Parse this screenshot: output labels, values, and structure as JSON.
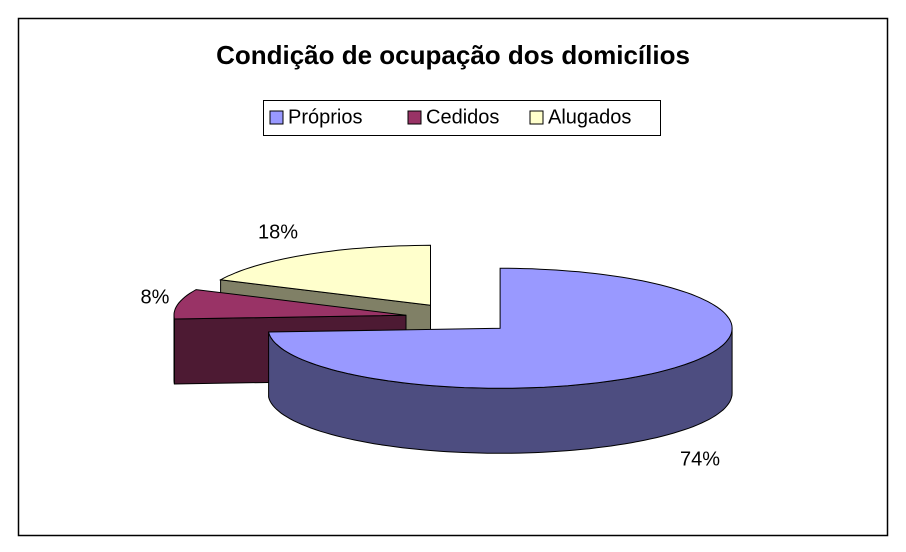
{
  "chart_data": {
    "type": "pie",
    "title": "Condição de ocupação dos domicílios",
    "categories": [
      "Próprios",
      "Cedidos",
      "Alugados"
    ],
    "values": [
      74,
      8,
      18
    ],
    "value_labels": [
      "74%",
      "8%",
      "18%"
    ],
    "colors": [
      "#9999ff",
      "#993366",
      "#ffffcc"
    ],
    "legend": "top"
  }
}
